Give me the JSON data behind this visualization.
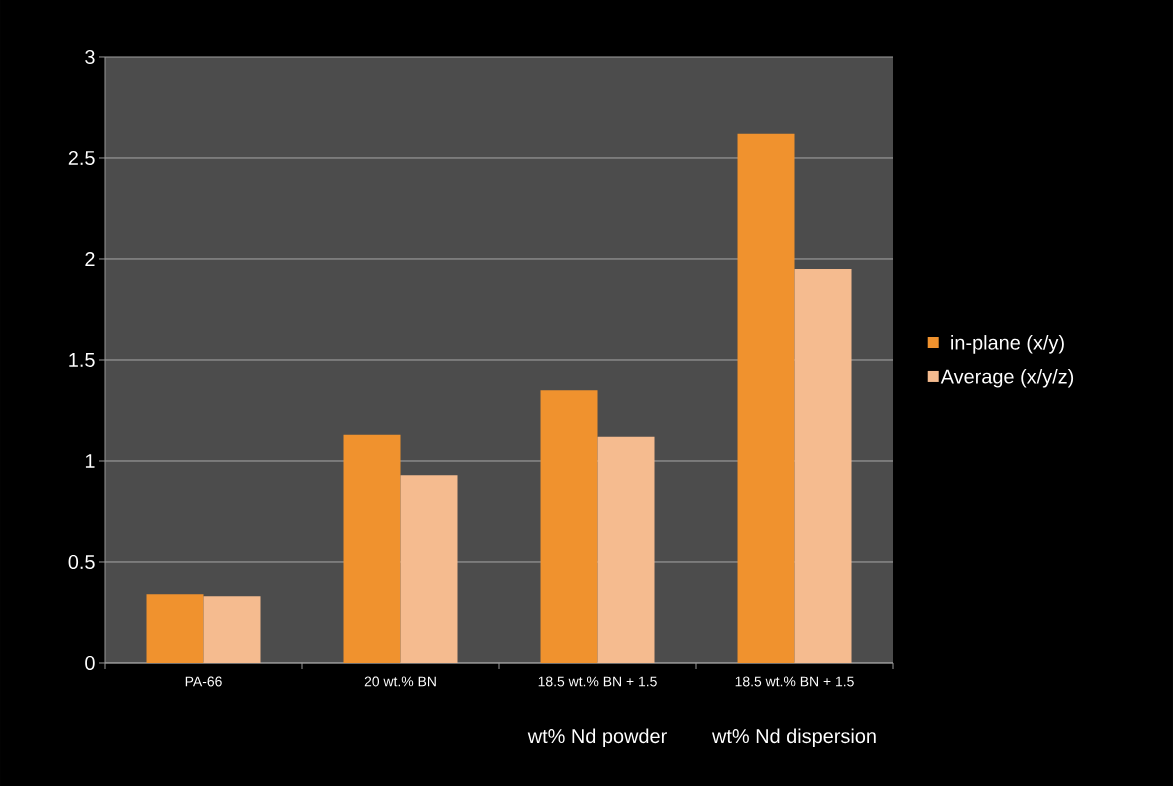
{
  "chart_data": {
    "type": "bar",
    "categories": [
      "PA-66",
      "20 wt.% BN",
      "18.5 wt.% BN + 1.5",
      "18.5 wt.% BN + 1.5"
    ],
    "series": [
      {
        "name": "in-plane (x/y)",
        "color": "#f0922e",
        "values": [
          0.34,
          1.13,
          1.35,
          2.62
        ]
      },
      {
        "name": "Average (x/y/z)",
        "color": "#f5bb8f",
        "values": [
          0.33,
          0.93,
          1.12,
          1.95
        ]
      }
    ],
    "annotations": [
      "wt% Nd powder",
      "wt% Nd dispersion"
    ],
    "ylim": [
      0,
      3
    ],
    "yticks": [
      0,
      0.5,
      1,
      1.5,
      2,
      2.5,
      3
    ],
    "grid": "y",
    "legend": "right"
  }
}
